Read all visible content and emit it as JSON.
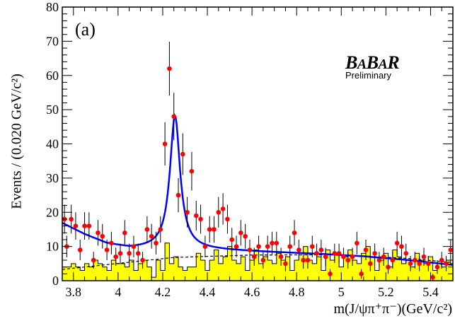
{
  "chart_data": {
    "type": "scatter",
    "panel_label": "(a)",
    "experiment_logo": "BABAR",
    "logo_subtitle": "Preliminary",
    "ylabel": "Events / (0.020 GeV/c²)",
    "xlabel": "m(J/ψπ⁺π⁻)(GeV/c²)",
    "xlim": [
      3.75,
      5.5
    ],
    "ylim": [
      0,
      80
    ],
    "x_ticks": [
      3.8,
      4.0,
      4.2,
      4.4,
      4.6,
      4.8,
      5.0,
      5.2,
      5.4
    ],
    "x_tick_labels": [
      "3.8",
      "4",
      "4.2",
      "4.4",
      "4.6",
      "4.8",
      "5",
      "5.2",
      "5.4"
    ],
    "y_ticks": [
      0,
      10,
      20,
      30,
      40,
      50,
      60,
      70,
      80
    ],
    "y_tick_labels": [
      "0",
      "10",
      "20",
      "30",
      "40",
      "50",
      "60",
      "70",
      "80"
    ],
    "colors": {
      "data": "#ff0000",
      "fit": "#0000ff",
      "background_hist": "#ffff00",
      "axis": "#000000"
    },
    "series": [
      {
        "type": "scatter-errorbar",
        "x": [
          3.76,
          3.77,
          3.79,
          3.81,
          3.83,
          3.85,
          3.87,
          3.89,
          3.91,
          3.93,
          3.95,
          3.97,
          3.99,
          4.01,
          4.03,
          4.05,
          4.07,
          4.09,
          4.11,
          4.13,
          4.15,
          4.17,
          4.19,
          4.21,
          4.23,
          4.25,
          4.27,
          4.29,
          4.31,
          4.33,
          4.35,
          4.37,
          4.39,
          4.41,
          4.43,
          4.45,
          4.47,
          4.49,
          4.51,
          4.53,
          4.55,
          4.57,
          4.59,
          4.61,
          4.63,
          4.65,
          4.67,
          4.69,
          4.71,
          4.73,
          4.75,
          4.77,
          4.79,
          4.81,
          4.83,
          4.85,
          4.87,
          4.89,
          4.91,
          4.93,
          4.95,
          4.97,
          4.99,
          5.01,
          5.03,
          5.05,
          5.07,
          5.09,
          5.11,
          5.13,
          5.15,
          5.17,
          5.19,
          5.21,
          5.23,
          5.25,
          5.27,
          5.29,
          5.31,
          5.33,
          5.35,
          5.37,
          5.39,
          5.41,
          5.43,
          5.45,
          5.47,
          5.49
        ],
        "y": [
          18,
          10,
          18,
          16,
          9,
          16,
          16,
          6,
          14,
          13,
          9,
          11,
          7,
          8,
          14,
          8,
          10,
          8,
          6,
          15,
          13,
          11,
          15,
          40,
          62,
          48,
          25,
          37,
          20,
          32,
          19,
          18,
          10,
          15,
          15,
          20,
          21,
          18,
          12,
          10,
          14,
          13,
          9,
          7,
          10,
          6,
          10,
          11,
          11,
          7,
          5,
          10,
          14,
          9,
          6,
          6,
          10,
          8,
          9,
          7,
          2,
          8,
          8,
          7,
          6,
          7,
          11,
          2,
          9,
          5,
          8,
          6,
          7,
          4,
          6,
          11,
          10,
          8,
          5,
          6,
          5,
          7,
          5,
          1,
          4,
          6,
          5,
          9
        ]
      },
      {
        "type": "fit-curve",
        "peak_mean": 4.255,
        "peak_width": 0.055,
        "peak_amplitude": 39,
        "background_points": [
          [
            3.75,
            16.8
          ],
          [
            3.85,
            13.5
          ],
          [
            3.95,
            10.8
          ],
          [
            4.05,
            9.5
          ],
          [
            4.15,
            9.4
          ],
          [
            4.3,
            9.3
          ],
          [
            4.5,
            8.8
          ],
          [
            4.7,
            8.3
          ],
          [
            4.9,
            7.8
          ],
          [
            5.1,
            7.1
          ],
          [
            5.3,
            6.0
          ],
          [
            5.5,
            4.6
          ]
        ]
      },
      {
        "type": "histogram",
        "bin_width": 0.02,
        "x_start": 3.75,
        "values": [
          4,
          4,
          5,
          4,
          3,
          5,
          4,
          6,
          5,
          4,
          3,
          6,
          5,
          5,
          4,
          6,
          3,
          5,
          6,
          4,
          1,
          6,
          3,
          11,
          5,
          7,
          4,
          3,
          4,
          4,
          8,
          6,
          3,
          6,
          9,
          5,
          7,
          10,
          6,
          5,
          7,
          3,
          6,
          9,
          5,
          7,
          6,
          5,
          8,
          6,
          7,
          3,
          6,
          8,
          10,
          6,
          5,
          7,
          3,
          9,
          6,
          8,
          4,
          7,
          9,
          6,
          5,
          8,
          10,
          7,
          3,
          6,
          8,
          4,
          9,
          7,
          5,
          6,
          4,
          8,
          6,
          5,
          7,
          3,
          5,
          4,
          6,
          5
        ]
      },
      {
        "type": "background-dashed",
        "points": [
          [
            3.75,
            3.3
          ],
          [
            4.25,
            6.8
          ],
          [
            4.6,
            7.5
          ],
          [
            5.0,
            7.6
          ],
          [
            5.3,
            6.5
          ],
          [
            5.5,
            5.3
          ]
        ]
      }
    ]
  }
}
